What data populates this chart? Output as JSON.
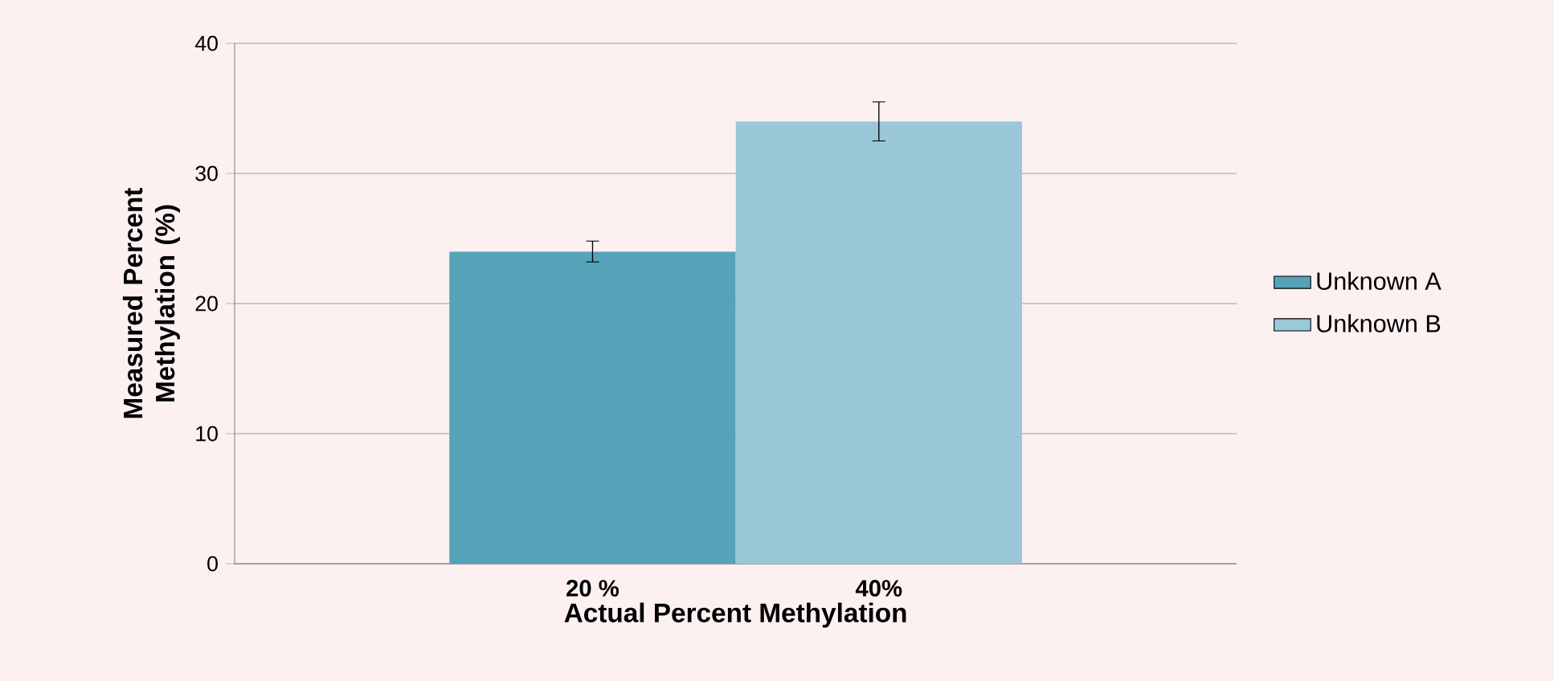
{
  "chart_data": {
    "type": "bar",
    "xlabel": "Actual Percent Methylation",
    "ylabel": "Measured Percent Methylation (%)",
    "categories": [
      "20 %",
      "40%"
    ],
    "series": [
      {
        "name": "Unknown A",
        "color": "#56a2b8",
        "values": [
          24,
          null
        ],
        "errors": [
          0.8,
          null
        ]
      },
      {
        "name": "Unknown B",
        "color": "#9ac8d8",
        "values": [
          null,
          34
        ],
        "errors": [
          null,
          1.5
        ]
      }
    ],
    "ylim": [
      0,
      40
    ],
    "yticks": [
      0,
      10,
      20,
      30,
      40
    ],
    "grid": "y",
    "legend": "right"
  }
}
